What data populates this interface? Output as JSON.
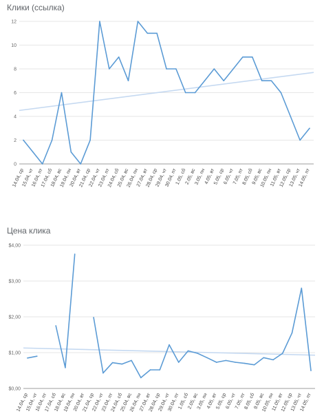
{
  "chart_data": [
    {
      "type": "line",
      "title": "Клики (ссылка)",
      "xlabel": "",
      "ylabel": "",
      "categories": [
        "14.04, ср",
        "15.04, чт",
        "16.04, пт",
        "17.04, сб",
        "18.04, вс",
        "19.04, пн",
        "20.04, вт",
        "21.04, ср",
        "22.04, чт",
        "23.04, пт",
        "24.04, сб",
        "25.04, вс",
        "26.04, пн",
        "27.04, вт",
        "28.04, ср",
        "29.04, чт",
        "30.04, пт",
        "1.05, сб",
        "2.05, вс",
        "3.05, пн",
        "4.05, вт",
        "5.05, ср",
        "6.05, чт",
        "7.05, пт",
        "8.05, сб",
        "9.05, вс",
        "10.05, пн",
        "11.05, вт",
        "12.05, ср",
        "13.05, чт",
        "14.05, пт"
      ],
      "series": [
        {
          "values": [
            2,
            1,
            0,
            2,
            6,
            1,
            0,
            2,
            12,
            8,
            9,
            7,
            12,
            11,
            11,
            8,
            8,
            6,
            6,
            7,
            8,
            7,
            8,
            9,
            9,
            7,
            7,
            6,
            4,
            2,
            3
          ]
        }
      ],
      "trendline": [
        4.5,
        7.7
      ],
      "ylim": [
        0,
        12
      ],
      "yticks": [
        "0",
        "2",
        "4",
        "6",
        "8",
        "10",
        "12"
      ],
      "grid": true,
      "colors": {
        "series": "#5b9bd5",
        "trend": "#c5d9f1"
      }
    },
    {
      "type": "line",
      "title": "Цена клика",
      "xlabel": "",
      "ylabel": "",
      "categories": [
        "14.04, ср",
        "15.04, чт",
        "16.04, пт",
        "17.04, сб",
        "18.04, вс",
        "19.04, пн",
        "20.04, вт",
        "21.04, ср",
        "22.04, чт",
        "23.04, пт",
        "24.04, сб",
        "25.04, вс",
        "26.04, пн",
        "27.04, вт",
        "28.04, ср",
        "29.04, чт",
        "30.04, пт",
        "1.05, сб",
        "2.05, вс",
        "3.05, пн",
        "4.05, вт",
        "5.05, ср",
        "6.05, чт",
        "7.05, пт",
        "8.05, сб",
        "9.05, вс",
        "10.05, пн",
        "11.05, вт",
        "12.05, ср",
        "13.05, чт",
        "14.05, пт"
      ],
      "series": [
        {
          "values": [
            0.85,
            0.9,
            null,
            1.75,
            0.58,
            3.75,
            null,
            1.98,
            0.43,
            0.72,
            0.68,
            0.78,
            0.3,
            0.52,
            0.52,
            1.22,
            0.73,
            1.05,
            0.98,
            0.86,
            0.73,
            0.78,
            0.73,
            0.7,
            0.66,
            0.86,
            0.8,
            0.98,
            1.55,
            2.8,
            0.5
          ]
        }
      ],
      "trendline": [
        1.13,
        0.93
      ],
      "ylim": [
        0,
        4
      ],
      "yticks": [
        "$0,00",
        "$1,00",
        "$2,00",
        "$3,00",
        "$4,00"
      ],
      "grid": true,
      "colors": {
        "series": "#5b9bd5",
        "trend": "#c5d9f1"
      }
    }
  ]
}
